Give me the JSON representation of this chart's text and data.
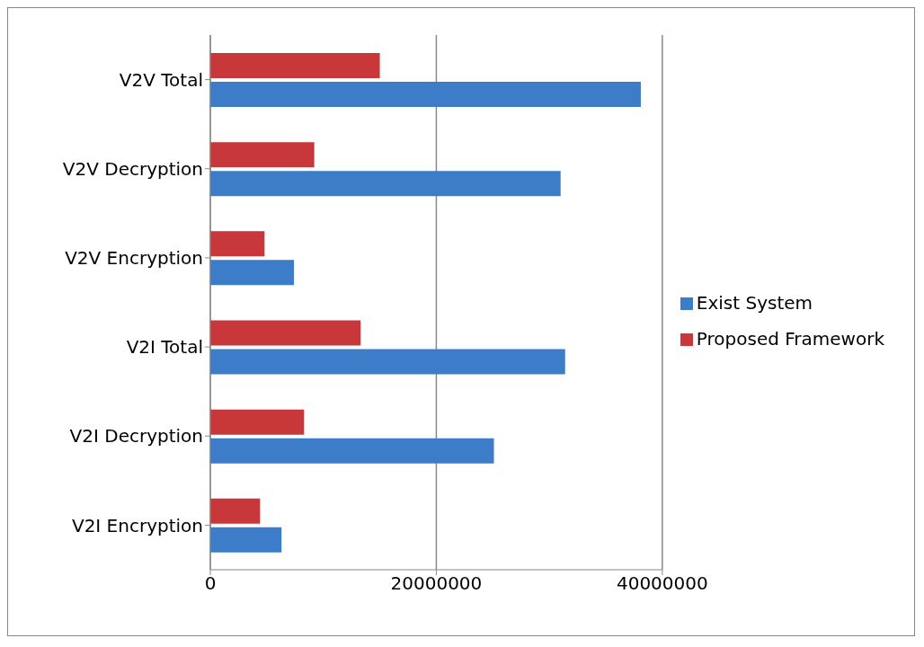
{
  "chart_data": {
    "type": "bar",
    "orientation": "horizontal",
    "categories": [
      "V2V Total",
      "V2V Decryption",
      "V2V Encryption",
      "V2I Total",
      "V2I Decryption",
      "V2I Encryption"
    ],
    "series": [
      {
        "name": "Proposed Framework",
        "color": "#c8383a",
        "values": [
          15000000,
          9200000,
          4800000,
          13300000,
          8300000,
          4400000
        ]
      },
      {
        "name": "Exist System",
        "color": "#3d7cc9",
        "values": [
          38100000,
          31000000,
          7400000,
          31400000,
          25100000,
          6300000
        ]
      }
    ],
    "xlim": [
      0,
      40000000
    ],
    "xticks": [
      0,
      20000000,
      40000000
    ],
    "grid": "x",
    "legend": "right"
  }
}
